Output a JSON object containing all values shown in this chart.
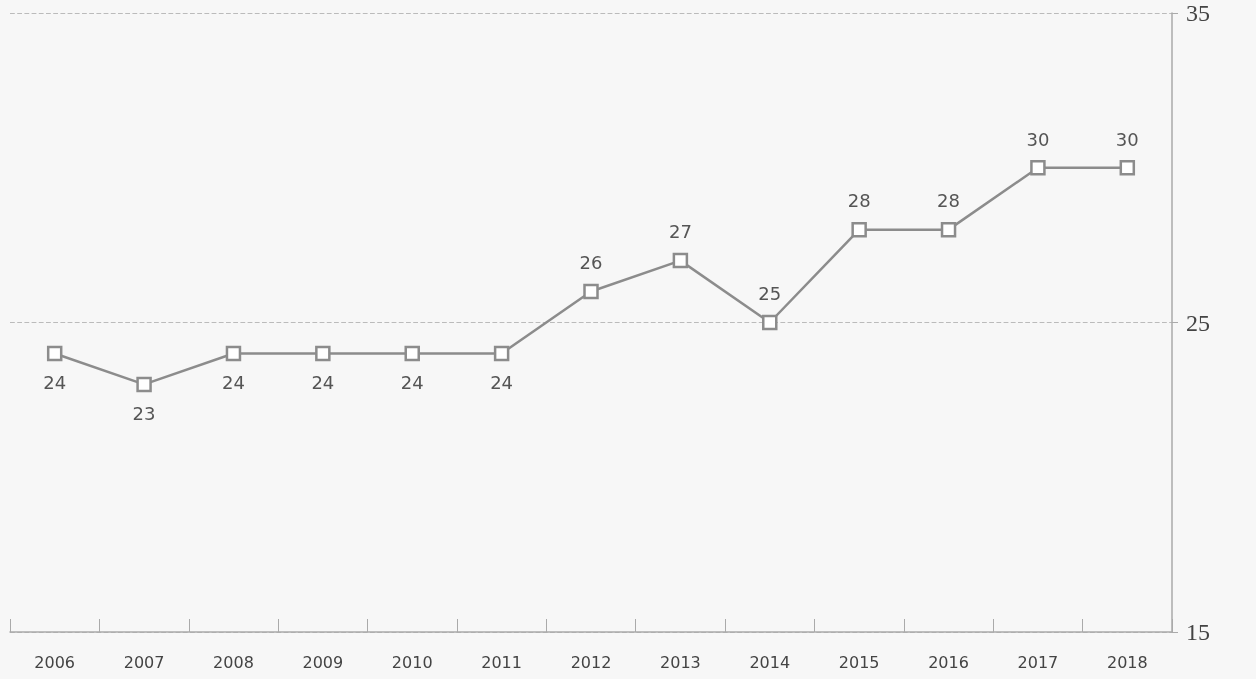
{
  "chart_data": {
    "type": "line",
    "categories": [
      "2006",
      "2007",
      "2008",
      "2009",
      "2010",
      "2011",
      "2012",
      "2013",
      "2014",
      "2015",
      "2016",
      "2017",
      "2018"
    ],
    "series": [
      {
        "color": "#8c8c8c",
        "values": [
          24,
          23,
          24,
          24,
          24,
          24,
          26,
          27,
          25,
          28,
          28,
          30,
          30
        ]
      }
    ],
    "ylim": [
      15,
      35
    ],
    "yticks": [
      15,
      25,
      35
    ],
    "grid": "y",
    "marker": "square",
    "line_style": "solid",
    "data_labels": true
  }
}
